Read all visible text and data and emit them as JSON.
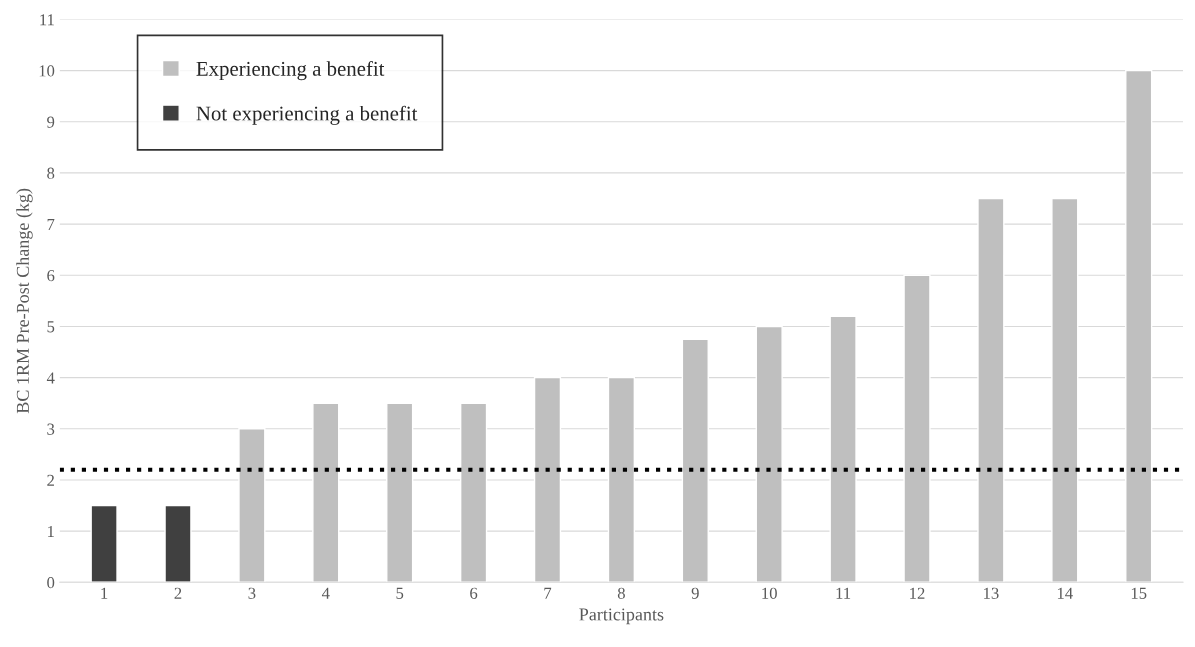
{
  "chart_data": {
    "type": "bar",
    "xlabel": "Participants",
    "ylabel": "BC 1RM Pre-Post Change (kg)",
    "categories": [
      "1",
      "2",
      "3",
      "4",
      "5",
      "6",
      "7",
      "8",
      "9",
      "10",
      "11",
      "12",
      "13",
      "14",
      "15"
    ],
    "series": [
      {
        "name": "Experiencing a benefit",
        "color": "#bfbfbf",
        "values": [
          null,
          null,
          3,
          3.5,
          3.5,
          3.5,
          4,
          4,
          4.75,
          5,
          5.2,
          6,
          7.5,
          7.5,
          10
        ]
      },
      {
        "name": "Not experiencing a benefit",
        "color": "#404040",
        "values": [
          1.5,
          1.5,
          null,
          null,
          null,
          null,
          null,
          null,
          null,
          null,
          null,
          null,
          null,
          null,
          null
        ]
      }
    ],
    "ylim": [
      0,
      11
    ],
    "yticks": [
      0,
      1,
      2,
      3,
      4,
      5,
      6,
      7,
      8,
      9,
      10,
      11
    ],
    "ref_lines": [
      {
        "axis": "y",
        "value": 2.2,
        "color": "#000000",
        "line_style": "dotted"
      }
    ],
    "grid": "y",
    "legend": "top left"
  }
}
